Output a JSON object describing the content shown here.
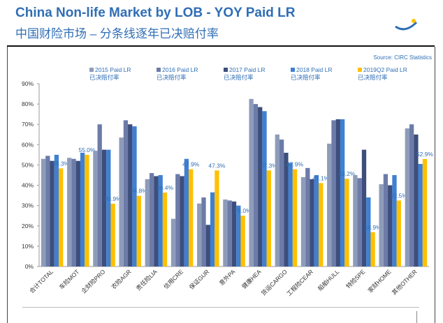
{
  "chart_data": {
    "type": "bar",
    "title": "China Non-life Market by LOB - YOY Paid LR",
    "subtitle": "中国财险市场 – 分条线逐年已决赔付率",
    "source": "Source: CIRC Statistics",
    "categories": [
      "合计TOTAL",
      "车险MOT",
      "企财险PRO",
      "农险AGR",
      "责任险LIA",
      "信用CRE",
      "保证GUR",
      "意外PA",
      "健康HEA",
      "货运CARGO",
      "工程险CEAR",
      "船舶HULL",
      "特险SPE",
      "家财HOME",
      "其他OTHER"
    ],
    "series": [
      {
        "name": "2015 Paid LR\n已决赔付率",
        "color": "#8e9cba",
        "values": [
          53,
          53.5,
          57,
          63.5,
          43,
          23.5,
          31,
          33,
          82.5,
          65,
          44,
          60.5,
          45,
          40.5,
          68
        ]
      },
      {
        "name": "2016 Paid LR\n已决赔付率",
        "color": "#6c7ba8",
        "values": [
          54.5,
          53,
          70,
          72,
          46,
          45.5,
          34,
          32.5,
          80,
          62.5,
          48.5,
          72,
          43.5,
          45.5,
          70
        ]
      },
      {
        "name": "2017 Paid LR\n已决赔付率",
        "color": "#3d4e7c",
        "values": [
          52,
          52,
          57.5,
          70,
          44.5,
          44.5,
          20.5,
          32,
          78.5,
          56,
          43,
          72.5,
          57.5,
          40,
          65
        ]
      },
      {
        "name": "2018 Paid LR\n已决赔付率",
        "color": "#3f80d2",
        "values": [
          55,
          56,
          57.5,
          69,
          45,
          53,
          36.5,
          30,
          76.5,
          51,
          45,
          72.5,
          34,
          45,
          50.5
        ]
      },
      {
        "name": "2019Q2 Paid LR\n已决赔付率",
        "color": "#ffc000",
        "values": [
          48.3,
          55.0,
          30.9,
          34.8,
          36.4,
          47.9,
          47.3,
          25.0,
          47.3,
          47.9,
          41.1,
          43.2,
          16.9,
          32.5,
          52.9
        ],
        "value_labels": [
          "48.3%",
          "55.0%",
          "30.9%",
          "34.8%",
          "36.4%",
          "47.9%",
          "47.3%",
          "25.0%",
          "47.3%",
          "47.9%",
          "41.1%",
          "43.2%",
          "16.9%",
          "32.5%",
          "52.9%"
        ]
      }
    ],
    "ylim": [
      0,
      90
    ],
    "yticks": [
      {
        "value": 0,
        "label": "0%"
      },
      {
        "value": 10,
        "label": "10%"
      },
      {
        "value": 20,
        "label": "20%"
      },
      {
        "value": 30,
        "label": "30%"
      },
      {
        "value": 40,
        "label": "40%"
      },
      {
        "value": 50,
        "label": "50%"
      },
      {
        "value": 60,
        "label": "60%"
      },
      {
        "value": 70,
        "label": "70%"
      },
      {
        "value": 80,
        "label": "80%"
      },
      {
        "value": 90,
        "label": "90%"
      }
    ],
    "grid": false
  }
}
